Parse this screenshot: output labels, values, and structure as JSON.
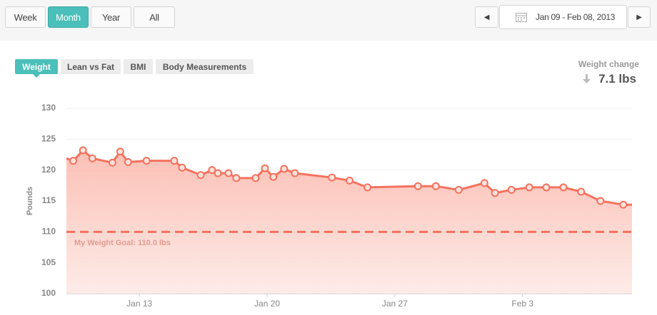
{
  "toolbar": {
    "ranges": [
      "Week",
      "Month",
      "Year",
      "All"
    ],
    "active": "Month",
    "date_range": "Jan 09 - Feb 08, 2013"
  },
  "tabs": {
    "items": [
      "Weight",
      "Lean vs Fat",
      "BMI",
      "Body Measurements"
    ],
    "active": "Weight"
  },
  "weight_change": {
    "label": "Weight change",
    "value": "7.1 lbs"
  },
  "chart_data": {
    "type": "line",
    "y_label": "Pounds",
    "color": "#f4725e",
    "x": [
      9.0,
      9.37,
      9.91,
      10.42,
      11.52,
      11.95,
      12.38,
      13.39,
      14.91,
      15.34,
      16.36,
      16.98,
      17.3,
      17.88,
      18.31,
      19.37,
      19.88,
      20.34,
      20.93,
      21.52,
      23.55,
      24.52,
      25.5,
      28.27,
      29.25,
      30.5,
      31.91,
      32.49,
      33.39,
      34.37,
      35.3,
      36.24,
      37.21,
      38.27,
      39.52,
      40.0
    ],
    "values": [
      121.9,
      121.5,
      123.2,
      121.9,
      121.2,
      123.0,
      121.3,
      121.5,
      121.5,
      120.4,
      119.2,
      120.0,
      119.5,
      119.5,
      118.7,
      118.7,
      120.3,
      118.9,
      120.2,
      119.5,
      118.8,
      118.3,
      117.2,
      117.4,
      117.4,
      116.8,
      117.9,
      116.3,
      116.8,
      117.2,
      117.2,
      117.2,
      116.5,
      115.0,
      114.4,
      114.4
    ],
    "markers": [
      false,
      true,
      true,
      true,
      true,
      true,
      true,
      true,
      true,
      true,
      true,
      true,
      true,
      true,
      true,
      true,
      true,
      true,
      true,
      true,
      true,
      true,
      true,
      true,
      true,
      true,
      true,
      true,
      true,
      true,
      true,
      true,
      true,
      true,
      true,
      false
    ],
    "xlim": [
      9,
      40
    ],
    "xticks": [
      {
        "value": 13,
        "label": "Jan 13"
      },
      {
        "value": 20,
        "label": "Jan 20"
      },
      {
        "value": 27,
        "label": "Jan 27"
      },
      {
        "value": 34,
        "label": "Feb 3"
      }
    ],
    "ylim": [
      100,
      130
    ],
    "yticks": [
      100,
      105,
      110,
      115,
      120,
      125,
      130
    ],
    "grid": true,
    "goal": {
      "value": 110,
      "label": "My Weight Goal: 110.0 lbs"
    }
  }
}
